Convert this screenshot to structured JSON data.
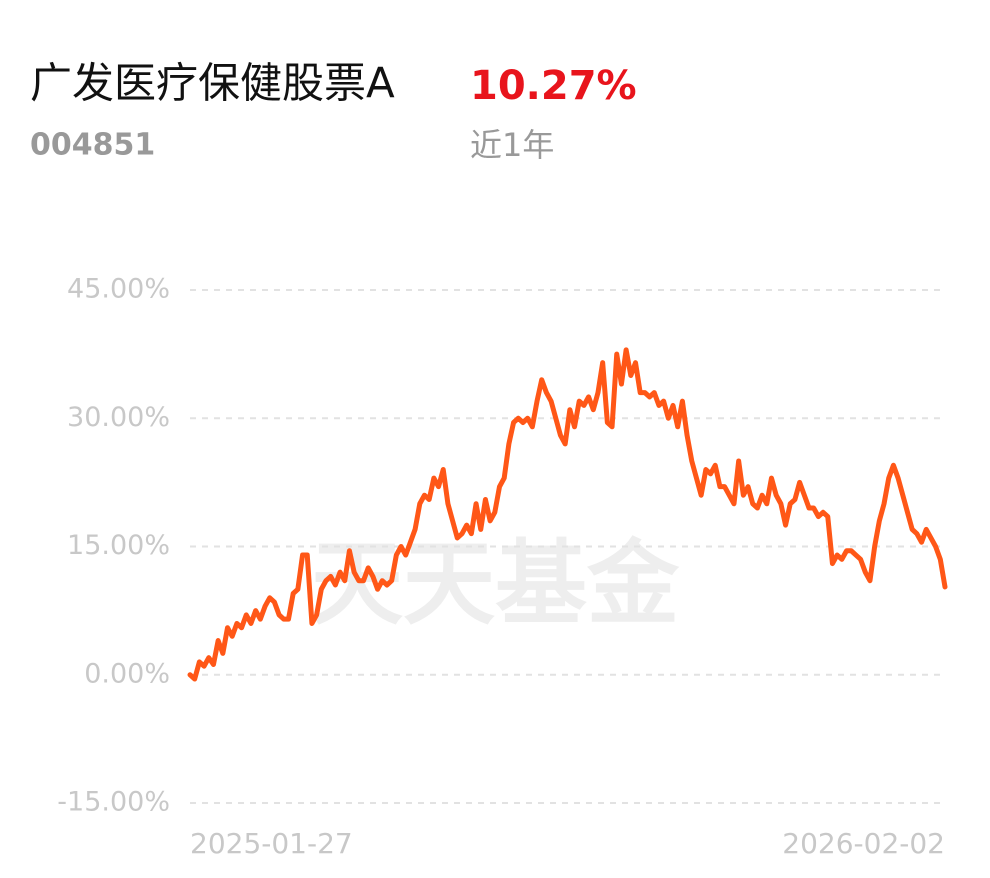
{
  "chart_data": {
    "type": "line",
    "title": "广发医疗保健股票A",
    "change": "10.27%",
    "code": "004851",
    "period": "近1年",
    "watermark": "天天基金",
    "categories": [
      "2025-01-27",
      null,
      null,
      null,
      null,
      null,
      null,
      null,
      null,
      null,
      null,
      null,
      null,
      null,
      null,
      null,
      null,
      null,
      null,
      null,
      null,
      null,
      null,
      null,
      null,
      null,
      null,
      null,
      null,
      null,
      null,
      null,
      null,
      null,
      null,
      null,
      null,
      null,
      null,
      null,
      null,
      null,
      null,
      null,
      null,
      null,
      null,
      null,
      null,
      null,
      null,
      null,
      null,
      null,
      null,
      null,
      null,
      null,
      null,
      null,
      null,
      null,
      null,
      null,
      null,
      null,
      null,
      null,
      null,
      null,
      null,
      null,
      null,
      null,
      null,
      null,
      null,
      null,
      null,
      null,
      null,
      null,
      null,
      null,
      null,
      null,
      null,
      null,
      null,
      null,
      null,
      null,
      null,
      null,
      null,
      null,
      null,
      null,
      null,
      null,
      null,
      null,
      null,
      null,
      null,
      null,
      null,
      null,
      null,
      null,
      null,
      null,
      null,
      null,
      null,
      null,
      null,
      null,
      null,
      null,
      null,
      null,
      null,
      null,
      null,
      null,
      null,
      null,
      null,
      null,
      null,
      null,
      null,
      null,
      null,
      null,
      null,
      null,
      null,
      null,
      null,
      null,
      null,
      null,
      null,
      null,
      null,
      null,
      null,
      null,
      null,
      null,
      null,
      null,
      null,
      null,
      null,
      null,
      null,
      null,
      null,
      "2026-02-02"
    ],
    "series": [
      {
        "name": "广发医疗保健股票A",
        "color": "#ff5717",
        "values": [
          0,
          -0.5,
          1.5,
          1,
          2,
          1.2,
          4,
          2.5,
          5.5,
          4.5,
          6,
          5.5,
          7,
          6,
          7.5,
          6.5,
          8,
          9,
          8.5,
          7,
          6.5,
          6.5,
          9.5,
          10,
          14,
          14,
          6,
          7,
          10,
          11,
          11.5,
          10.5,
          12,
          11,
          14.5,
          12,
          11,
          11,
          12.5,
          11.5,
          10,
          11,
          10.5,
          11,
          14,
          15,
          14,
          15.5,
          17,
          20,
          21,
          20.5,
          23,
          22,
          24,
          20,
          18,
          16,
          16.5,
          17.5,
          16.5,
          20,
          17,
          20.5,
          18,
          19,
          22,
          23,
          27,
          29.5,
          30,
          29.5,
          30,
          29,
          32,
          34.5,
          33,
          32,
          30,
          28,
          27,
          31,
          29,
          32,
          31.5,
          32.5,
          31,
          33,
          36.5,
          29.5,
          29,
          37.5,
          34,
          38,
          35,
          36.5,
          33,
          33,
          32.5,
          33,
          31.5,
          32,
          30,
          31.5,
          29,
          32,
          28,
          25,
          23,
          21,
          24,
          23.5,
          24.5,
          22,
          22,
          21,
          20,
          25,
          21,
          22,
          20,
          19.5,
          21,
          20,
          23,
          21,
          20,
          17.5,
          20,
          20.5,
          22.5,
          21,
          19.5,
          19.5,
          18.5,
          19,
          18.5,
          13,
          14,
          13.5,
          14.5,
          14.5,
          14,
          13.5,
          12,
          11,
          15,
          18,
          20,
          23,
          24.5,
          23,
          21,
          19,
          17,
          16.5,
          15.5,
          17,
          16,
          15,
          13.5,
          10.27
        ]
      }
    ],
    "ylim": [
      -15,
      45
    ],
    "yticks": [
      {
        "value": 45,
        "label": "45.00%"
      },
      {
        "value": 30,
        "label": "30.00%"
      },
      {
        "value": 15,
        "label": "15.00%"
      },
      {
        "value": 0,
        "label": "0.00%"
      },
      {
        "value": -15,
        "label": "-15.00%"
      }
    ],
    "grid": true
  }
}
